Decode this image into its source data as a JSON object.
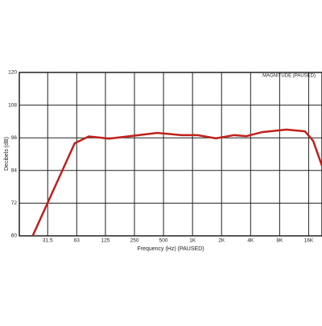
{
  "chart_data": {
    "type": "line",
    "annotation": "MAGNITUDE (PAUSED)",
    "x_label": "Frequency (Hz) (PAUSED)",
    "y_label": "Decibels (dB)",
    "xscale": "log",
    "grid": true,
    "xlim": [
      16,
      22000
    ],
    "ylim": [
      60,
      120
    ],
    "xticks": [
      31.5,
      63,
      125,
      250,
      500,
      {
        "value": 1000,
        "label": "1K"
      },
      {
        "value": 2000,
        "label": "2K"
      },
      {
        "value": 4000,
        "label": "4K"
      },
      {
        "value": 8000,
        "label": "8K"
      },
      {
        "value": 16000,
        "label": "16K"
      }
    ],
    "yticks": [
      60,
      72,
      84,
      96,
      108,
      120
    ],
    "x": [
      22,
      60,
      84,
      136,
      266,
      430,
      770,
      1120,
      1750,
      2700,
      3600,
      5300,
      9400,
      14600,
      17800,
      22000
    ],
    "series": [
      {
        "color": "#c0201c",
        "values": [
          60,
          94,
          96.5,
          95.7,
          96.9,
          97.8,
          97,
          97,
          95.8,
          97,
          96.6,
          98.1,
          99,
          98.4,
          94.9,
          85.7
        ]
      }
    ]
  }
}
